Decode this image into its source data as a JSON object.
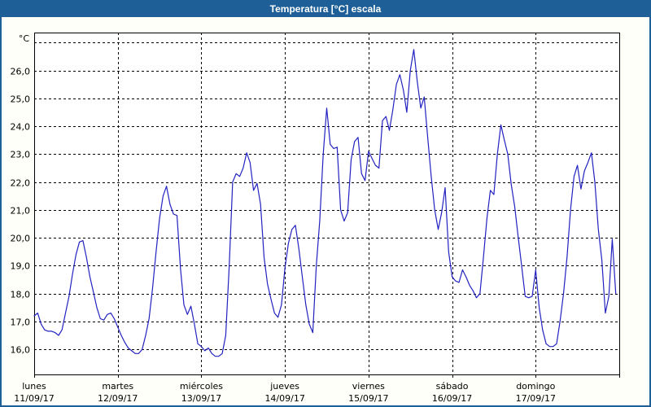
{
  "window": {
    "title": "Temperatura [°C] escala"
  },
  "colors": {
    "titlebar_bg": "#1d5f96",
    "window_border": "#1d5f96",
    "background": "#fdfff8",
    "plot_background": "#ffffff",
    "grid": "#000000",
    "axis": "#000000",
    "line": "#2222c0",
    "title_text": "#ffffff",
    "label_text": "#000000"
  },
  "chart_data": {
    "type": "line",
    "title": "Temperatura [°C] escala",
    "xlabel": "",
    "ylabel": "°C",
    "unit_label": "°C",
    "grid": "dashed",
    "legend": "none",
    "ylim": [
      15.1,
      27.36
    ],
    "hours_per_day": 24,
    "y_ticks": [
      {
        "value": 16,
        "label": "16,0"
      },
      {
        "value": 17,
        "label": "17,0"
      },
      {
        "value": 18,
        "label": "18,0"
      },
      {
        "value": 19,
        "label": "19,0"
      },
      {
        "value": 20,
        "label": "20,0"
      },
      {
        "value": 21,
        "label": "21,0"
      },
      {
        "value": 22,
        "label": "22,0"
      },
      {
        "value": 23,
        "label": "23,0"
      },
      {
        "value": 24,
        "label": "24,0"
      },
      {
        "value": 25,
        "label": "25,0"
      },
      {
        "value": 26,
        "label": "26,0"
      },
      {
        "value": 27,
        "label": ""
      }
    ],
    "x_days": [
      {
        "day": "lunes",
        "date": "11/09/17"
      },
      {
        "day": "martes",
        "date": "12/09/17"
      },
      {
        "day": "miércoles",
        "date": "13/09/17"
      },
      {
        "day": "jueves",
        "date": "14/09/17"
      },
      {
        "day": "viernes",
        "date": "15/09/17"
      },
      {
        "day": "sábado",
        "date": "16/09/17"
      },
      {
        "day": "domingo",
        "date": "17/09/17"
      }
    ],
    "series": [
      {
        "name": "Temperatura",
        "color": "#2222c0",
        "values": [
          17.2,
          17.3,
          16.9,
          16.7,
          16.65,
          16.65,
          16.6,
          16.5,
          16.7,
          17.3,
          17.9,
          18.7,
          19.4,
          19.85,
          19.9,
          19.3,
          18.6,
          18.05,
          17.5,
          17.1,
          17.05,
          17.25,
          17.3,
          17.1,
          16.8,
          16.5,
          16.25,
          16.05,
          15.95,
          15.85,
          15.85,
          16.0,
          16.5,
          17.1,
          18.2,
          19.5,
          20.7,
          21.5,
          21.85,
          21.2,
          20.85,
          20.8,
          18.9,
          17.6,
          17.25,
          17.55,
          16.9,
          16.2,
          16.1,
          15.95,
          16.05,
          15.85,
          15.75,
          15.75,
          15.85,
          16.5,
          19.0,
          22.0,
          22.3,
          22.2,
          22.5,
          23.05,
          22.7,
          21.7,
          21.95,
          21.2,
          19.3,
          18.35,
          17.8,
          17.3,
          17.15,
          17.6,
          18.9,
          19.8,
          20.3,
          20.45,
          19.6,
          18.6,
          17.6,
          16.9,
          16.6,
          19.0,
          20.6,
          23.0,
          24.65,
          23.35,
          23.2,
          23.25,
          21.0,
          20.6,
          20.9,
          22.8,
          23.45,
          23.6,
          22.3,
          22.05,
          23.1,
          22.85,
          22.6,
          22.5,
          24.2,
          24.35,
          23.85,
          24.6,
          25.5,
          25.85,
          25.3,
          24.5,
          26.0,
          26.75,
          25.6,
          24.65,
          25.05,
          23.6,
          22.2,
          21.0,
          20.3,
          20.9,
          21.8,
          19.5,
          18.6,
          18.45,
          18.4,
          18.85,
          18.6,
          18.3,
          18.1,
          17.85,
          18.0,
          19.3,
          20.7,
          21.7,
          21.55,
          23.0,
          24.05,
          23.5,
          23.0,
          21.9,
          21.1,
          20.0,
          18.95,
          17.9,
          17.85,
          17.9,
          18.85,
          17.5,
          16.7,
          16.2,
          16.1,
          16.1,
          16.2,
          17.0,
          18.0,
          19.3,
          21.0,
          22.2,
          22.6,
          21.75,
          22.4,
          22.7,
          23.05,
          22.0,
          20.3,
          19.2,
          17.3,
          17.9,
          19.95,
          18.0
        ]
      }
    ]
  }
}
